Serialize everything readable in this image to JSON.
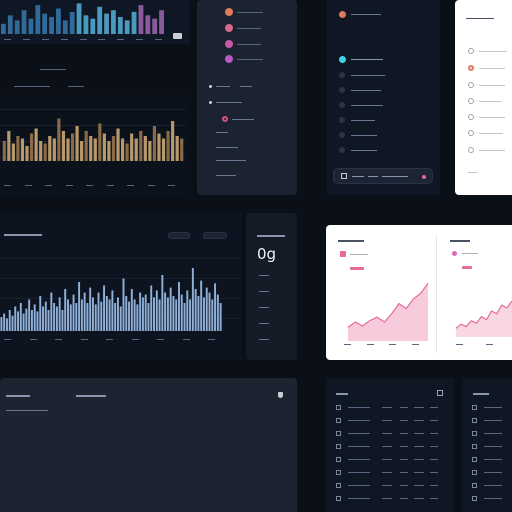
{
  "colors": {
    "bg": "#0a0f18",
    "panel": "#101724",
    "panel_mid": "#1b2230",
    "accent_pink": "#e86a9a",
    "accent_cyan": "#3fd4e8",
    "bar_tan": "#b89a6a",
    "bar_blue": "#8fb0d8"
  },
  "chart_top_left": {
    "type": "bar",
    "values": [
      30,
      55,
      40,
      70,
      45,
      85,
      60,
      50,
      75,
      40,
      65,
      90,
      55,
      45,
      80,
      60,
      70,
      50,
      40,
      65,
      85,
      55,
      45,
      70
    ]
  },
  "chart_mid_left": {
    "type": "bar",
    "values": [
      40,
      60,
      35,
      50,
      45,
      30,
      55,
      65,
      40,
      35,
      50,
      45,
      85,
      60,
      45,
      55,
      70,
      40,
      60,
      50,
      45,
      75,
      55,
      40,
      50,
      65,
      45,
      35,
      55,
      45,
      60,
      50,
      40,
      70,
      55,
      45,
      60,
      80,
      50,
      45
    ]
  },
  "chart_big": {
    "type": "bar",
    "values": [
      20,
      25,
      18,
      30,
      22,
      35,
      28,
      40,
      25,
      32,
      45,
      30,
      38,
      28,
      50,
      35,
      42,
      30,
      55,
      40,
      35,
      48,
      30,
      60,
      45,
      38,
      52,
      40,
      70,
      45,
      55,
      40,
      62,
      48,
      38,
      55,
      42,
      65,
      50,
      45,
      58,
      40,
      48,
      35,
      75,
      50,
      42,
      60,
      45,
      38,
      55,
      48,
      52,
      40,
      65,
      48,
      58,
      45,
      80,
      55,
      48,
      62,
      50,
      45,
      70,
      52,
      40,
      58,
      45,
      90,
      60,
      50,
      72,
      48,
      62,
      55,
      45,
      68,
      52,
      40
    ]
  },
  "chart_area_a": {
    "type": "area",
    "values": [
      20,
      28,
      22,
      30,
      35,
      28,
      40,
      55,
      48,
      62,
      70,
      85
    ]
  },
  "chart_area_b": {
    "type": "area",
    "values": [
      15,
      22,
      18,
      28,
      24,
      35,
      30,
      45,
      40,
      55,
      50,
      62
    ]
  },
  "metric": {
    "value": "0g"
  },
  "icons": [
    "chevron-icon",
    "dot-icon",
    "notification-icon",
    "download-icon",
    "menu-icon",
    "list-icon"
  ]
}
